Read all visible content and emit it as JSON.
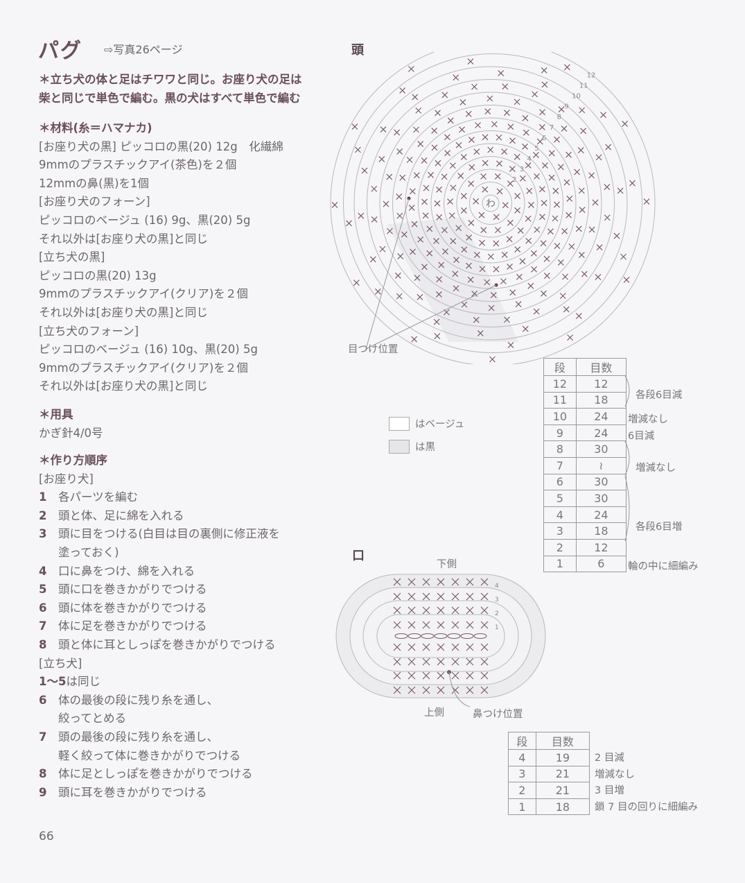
{
  "header": {
    "title": "パグ",
    "photo_ref": "⇨写真26ページ"
  },
  "intro": [
    "＊立ち犬の体と足はチワワと同じ。お座り犬の足は",
    "柴と同じで単色で編む。黒の犬はすべて単色で編む"
  ],
  "materials": {
    "heading": "＊材料(糸＝ハマナカ)",
    "lines": [
      "[お座り犬の黒] ピッコロの黒(20) 12g　化繊綿",
      "9mmのプラスチックアイ(茶色)を２個",
      "12mmの鼻(黒)を1個",
      "[お座り犬のフォーン]",
      "ピッコロのベージュ (16) 9g、黒(20) 5g",
      "それ以外は[お座り犬の黒]と同じ",
      "[立ち犬の黒]",
      "ピッコロの黒(20) 13g",
      "9mmのプラスチックアイ(クリア)を２個",
      "それ以外は[お座り犬の黒]と同じ",
      "[立ち犬のフォーン]",
      "ピッコロのベージュ (16) 10g、黒(20) 5g",
      "9mmのプラスチックアイ(クリア)を２個",
      "それ以外は[お座り犬の黒]と同じ"
    ]
  },
  "tools": {
    "heading": "＊用具",
    "lines": [
      "かぎ針4/0号"
    ]
  },
  "steps": {
    "heading": "＊作り方順序",
    "sitting_label": "[お座り犬]",
    "sitting": [
      {
        "n": "1",
        "t": "各パーツを編む"
      },
      {
        "n": "2",
        "t": "頭と体、足に綿を入れる"
      },
      {
        "n": "3",
        "t": "頭に目をつける(白目は目の裏側に修正液を",
        "t2": "塗っておく)"
      },
      {
        "n": "4",
        "t": "口に鼻をつけ、綿を入れる"
      },
      {
        "n": "5",
        "t": "頭に口を巻きかがりでつける"
      },
      {
        "n": "6",
        "t": "頭に体を巻きかがりでつける"
      },
      {
        "n": "7",
        "t": "体に足を巻きかがりでつける"
      },
      {
        "n": "8",
        "t": "頭と体に耳としっぽを巻きかがりでつける"
      }
    ],
    "standing_label": "[立ち犬]",
    "standing_same": {
      "n": "1～5",
      "t": "は同じ"
    },
    "standing": [
      {
        "n": "6",
        "t": "体の最後の段に残り糸を通し、",
        "t2": "絞ってとめる"
      },
      {
        "n": "7",
        "t": "頭の最後の段に残り糸を通し、",
        "t2": "軽く絞って体に巻きかがりでつける"
      },
      {
        "n": "8",
        "t": "体に足としっぽを巻きかがりでつける"
      },
      {
        "n": "9",
        "t": "頭に耳を巻きかがりでつける"
      }
    ]
  },
  "page_number": "66",
  "head": {
    "heading": "頭",
    "eye_label": "目つけ位置",
    "center_label": "わ",
    "round_labels": [
      "2",
      "3",
      "4",
      "5",
      "6",
      "7",
      "8",
      "9",
      "10",
      "11",
      "12"
    ],
    "table": {
      "headers": [
        "段",
        "目数"
      ],
      "rows": [
        [
          "12",
          "12"
        ],
        [
          "11",
          "18"
        ],
        [
          "10",
          "24"
        ],
        [
          "9",
          "24"
        ],
        [
          "8",
          "30"
        ],
        [
          "7",
          "≀"
        ],
        [
          "6",
          "30"
        ],
        [
          "5",
          "30"
        ],
        [
          "4",
          "24"
        ],
        [
          "3",
          "18"
        ],
        [
          "2",
          "12"
        ],
        [
          "1",
          "6"
        ]
      ],
      "notes": [
        "各段6目減",
        "増減なし",
        "6目減",
        "増減なし",
        "各段6目増",
        "輪の中に細編み"
      ]
    }
  },
  "legend": [
    {
      "color": "#ffffff",
      "label": "はベージュ"
    },
    {
      "color": "#e6e6ea",
      "label": "は黒"
    }
  ],
  "mouth": {
    "heading": "口",
    "bottom_side": "下側",
    "top_side": "上側",
    "nose_label": "鼻つけ位置",
    "round_labels": [
      "1",
      "2",
      "3",
      "4"
    ],
    "table": {
      "headers": [
        "段",
        "目数"
      ],
      "rows": [
        [
          "4",
          "19"
        ],
        [
          "3",
          "21"
        ],
        [
          "2",
          "21"
        ],
        [
          "1",
          "18"
        ]
      ],
      "notes": [
        "2 目減",
        "増減なし",
        "3 目増",
        "鎖 7 目の回りに細編み"
      ]
    }
  },
  "colors": {
    "heading": "#6a5058",
    "text": "#6d6668",
    "stitch": "#7a5a64",
    "ring": "#b8b8bc"
  }
}
